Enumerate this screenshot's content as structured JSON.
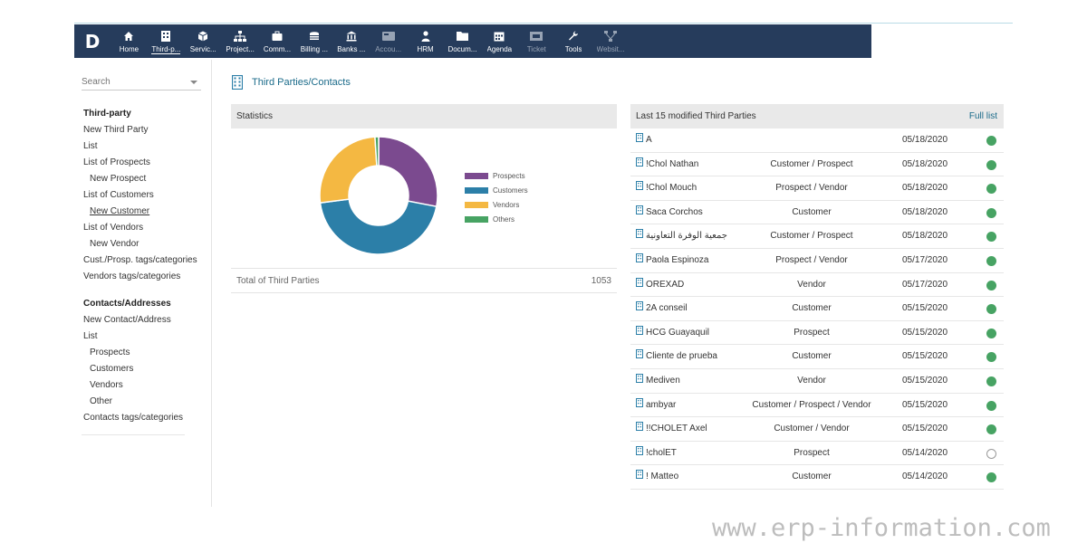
{
  "topbar": {
    "logo": "D",
    "items": [
      {
        "label": "Home",
        "icon": "home-icon",
        "active": false,
        "dim": false
      },
      {
        "label": "Third-p...",
        "icon": "building-icon",
        "active": true,
        "dim": false
      },
      {
        "label": "Servic...",
        "icon": "cube-icon",
        "active": false,
        "dim": false
      },
      {
        "label": "Project...",
        "icon": "hierarchy-icon",
        "active": false,
        "dim": false
      },
      {
        "label": "Comm...",
        "icon": "briefcase-icon",
        "active": false,
        "dim": false
      },
      {
        "label": "Billing ...",
        "icon": "coins-icon",
        "active": false,
        "dim": false
      },
      {
        "label": "Banks ...",
        "icon": "bank-icon",
        "active": false,
        "dim": false
      },
      {
        "label": "Accou...",
        "icon": "calculator-icon",
        "active": false,
        "dim": true
      },
      {
        "label": "HRM",
        "icon": "person-icon",
        "active": false,
        "dim": false
      },
      {
        "label": "Docum...",
        "icon": "folder-icon",
        "active": false,
        "dim": false
      },
      {
        "label": "Agenda",
        "icon": "calendar-icon",
        "active": false,
        "dim": false
      },
      {
        "label": "Ticket",
        "icon": "ticket-icon",
        "active": false,
        "dim": true
      },
      {
        "label": "Tools",
        "icon": "wrench-icon",
        "active": false,
        "dim": false
      },
      {
        "label": "Websit...",
        "icon": "sitemap-icon",
        "active": false,
        "dim": true
      }
    ]
  },
  "sidebar": {
    "search_placeholder": "Search",
    "items": [
      {
        "label": "Third-party",
        "kind": "title"
      },
      {
        "label": "New Third Party",
        "kind": "link"
      },
      {
        "label": "List",
        "kind": "link"
      },
      {
        "label": "List of Prospects",
        "kind": "link"
      },
      {
        "label": "New Prospect",
        "kind": "sub"
      },
      {
        "label": "List of Customers",
        "kind": "link"
      },
      {
        "label": "New Customer",
        "kind": "sub-underline"
      },
      {
        "label": "List of Vendors",
        "kind": "link"
      },
      {
        "label": "New Vendor",
        "kind": "sub"
      },
      {
        "label": "Cust./Prosp. tags/categories",
        "kind": "link"
      },
      {
        "label": "Vendors tags/categories",
        "kind": "link"
      },
      {
        "label": "Contacts/Addresses",
        "kind": "title-gap"
      },
      {
        "label": "New Contact/Address",
        "kind": "link"
      },
      {
        "label": "List",
        "kind": "link"
      },
      {
        "label": "Prospects",
        "kind": "sub"
      },
      {
        "label": "Customers",
        "kind": "sub"
      },
      {
        "label": "Vendors",
        "kind": "sub"
      },
      {
        "label": "Other",
        "kind": "sub"
      },
      {
        "label": "Contacts tags/categories",
        "kind": "link"
      }
    ]
  },
  "page": {
    "title": "Third Parties/Contacts"
  },
  "statistics": {
    "header": "Statistics",
    "total_label": "Total of Third Parties",
    "total_value": "1053"
  },
  "chart_data": {
    "type": "pie",
    "categories": [
      "Prospects",
      "Customers",
      "Vendors",
      "Others"
    ],
    "values": [
      28,
      45,
      26,
      1
    ],
    "colors": [
      "#7b4a8f",
      "#2c7fa8",
      "#f4b842",
      "#47a363"
    ],
    "legend": "right"
  },
  "recent": {
    "header": "Last 15 modified Third Parties",
    "full_list_label": "Full list",
    "rows": [
      {
        "name": "A",
        "type": "",
        "date": "05/18/2020",
        "active": true
      },
      {
        "name": "!Chol Nathan",
        "type": "Customer / Prospect",
        "date": "05/18/2020",
        "active": true
      },
      {
        "name": "!Chol Mouch",
        "type": "Prospect / Vendor",
        "date": "05/18/2020",
        "active": true
      },
      {
        "name": "Saca Corchos",
        "type": "Customer",
        "date": "05/18/2020",
        "active": true
      },
      {
        "name": "جمعية الوفرة التعاونية",
        "type": "Customer / Prospect",
        "date": "05/18/2020",
        "active": true
      },
      {
        "name": "Paola Espinoza",
        "type": "Prospect / Vendor",
        "date": "05/17/2020",
        "active": true
      },
      {
        "name": "OREXAD",
        "type": "Vendor",
        "date": "05/17/2020",
        "active": true
      },
      {
        "name": "2A conseil",
        "type": "Customer",
        "date": "05/15/2020",
        "active": true
      },
      {
        "name": "HCG Guayaquil",
        "type": "Prospect",
        "date": "05/15/2020",
        "active": true
      },
      {
        "name": "Cliente de prueba",
        "type": "Customer",
        "date": "05/15/2020",
        "active": true
      },
      {
        "name": "Mediven",
        "type": "Vendor",
        "date": "05/15/2020",
        "active": true
      },
      {
        "name": "ambyar",
        "type": "Customer / Prospect / Vendor",
        "date": "05/15/2020",
        "active": true
      },
      {
        "name": "!!CHOLET Axel",
        "type": "Customer / Vendor",
        "date": "05/15/2020",
        "active": true
      },
      {
        "name": "!cholET",
        "type": "Prospect",
        "date": "05/14/2020",
        "active": false
      },
      {
        "name": "! Matteo",
        "type": "Customer",
        "date": "05/14/2020",
        "active": true
      }
    ]
  },
  "watermark": "www.erp-information.com",
  "colors": {
    "topbar": "#263c5c",
    "accent": "#1b6b8a",
    "status_active": "#47a363"
  }
}
